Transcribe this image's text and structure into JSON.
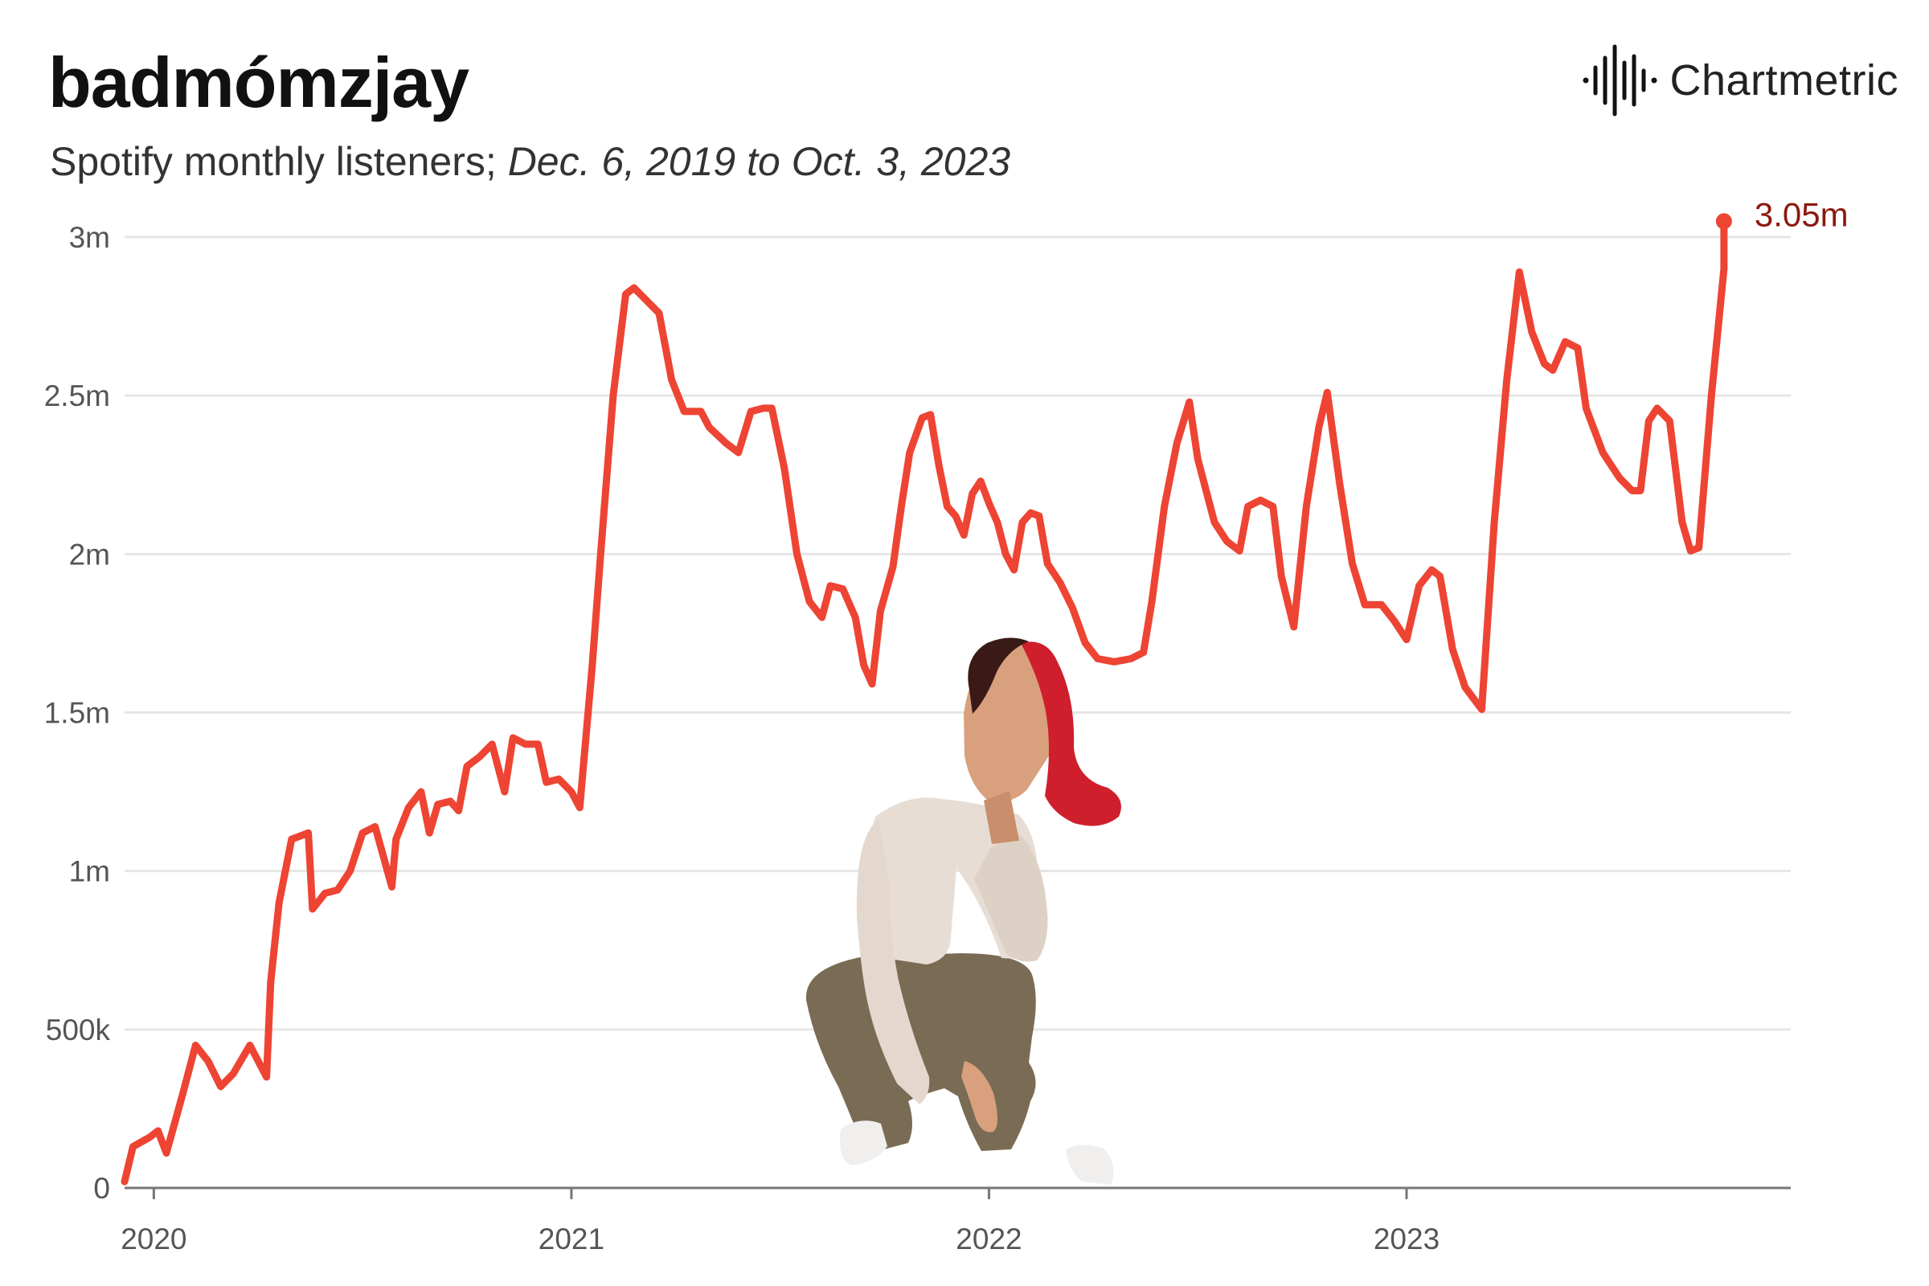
{
  "header": {
    "title": "badmómzjay",
    "subtitle_prefix": "Spotify monthly listeners; ",
    "subtitle_range": "Dec. 6, 2019 to Oct. 3, 2023"
  },
  "brand": {
    "name": "Chartmetric",
    "icon": "waveform-logo-icon"
  },
  "colors": {
    "line": "#ee4433",
    "end_label": "#8b1a10",
    "grid": "#e6e6e6",
    "axis": "#777777"
  },
  "illustration": {
    "subject": "artist-photo"
  },
  "chart_data": {
    "type": "line",
    "title": "badmómzjay",
    "subtitle": "Spotify monthly listeners; Dec. 6, 2019 to Oct. 3, 2023",
    "xlabel": "",
    "ylabel": "",
    "xlim": [
      2019.93,
      2023.92
    ],
    "ylim": [
      0,
      3000000
    ],
    "x_ticks": [
      2020,
      2021,
      2022,
      2023
    ],
    "x_tick_labels": [
      "2020",
      "2021",
      "2022",
      "2023"
    ],
    "y_ticks": [
      0,
      500000,
      1000000,
      1500000,
      2000000,
      2500000,
      3000000
    ],
    "y_tick_labels": [
      "0",
      "500k",
      "1m",
      "1.5m",
      "2m",
      "2.5m",
      "3m"
    ],
    "grid": "horizontal",
    "end_label": "3.05m",
    "series": [
      {
        "name": "Spotify monthly listeners",
        "points": [
          [
            2019.93,
            20000
          ],
          [
            2019.95,
            130000
          ],
          [
            2019.99,
            160000
          ],
          [
            2020.01,
            180000
          ],
          [
            2020.03,
            110000
          ],
          [
            2020.07,
            300000
          ],
          [
            2020.1,
            450000
          ],
          [
            2020.13,
            400000
          ],
          [
            2020.16,
            320000
          ],
          [
            2020.19,
            360000
          ],
          [
            2020.23,
            450000
          ],
          [
            2020.25,
            400000
          ],
          [
            2020.27,
            350000
          ],
          [
            2020.28,
            650000
          ],
          [
            2020.3,
            900000
          ],
          [
            2020.33,
            1100000
          ],
          [
            2020.37,
            1120000
          ],
          [
            2020.38,
            880000
          ],
          [
            2020.41,
            930000
          ],
          [
            2020.44,
            940000
          ],
          [
            2020.47,
            1000000
          ],
          [
            2020.5,
            1120000
          ],
          [
            2020.53,
            1140000
          ],
          [
            2020.57,
            950000
          ],
          [
            2020.58,
            1100000
          ],
          [
            2020.61,
            1200000
          ],
          [
            2020.64,
            1250000
          ],
          [
            2020.66,
            1120000
          ],
          [
            2020.68,
            1210000
          ],
          [
            2020.71,
            1220000
          ],
          [
            2020.73,
            1190000
          ],
          [
            2020.75,
            1330000
          ],
          [
            2020.78,
            1360000
          ],
          [
            2020.81,
            1400000
          ],
          [
            2020.84,
            1250000
          ],
          [
            2020.86,
            1420000
          ],
          [
            2020.89,
            1400000
          ],
          [
            2020.92,
            1400000
          ],
          [
            2020.94,
            1280000
          ],
          [
            2020.97,
            1290000
          ],
          [
            2021.0,
            1250000
          ],
          [
            2021.02,
            1200000
          ],
          [
            2021.05,
            1650000
          ],
          [
            2021.07,
            2000000
          ],
          [
            2021.1,
            2500000
          ],
          [
            2021.13,
            2820000
          ],
          [
            2021.15,
            2840000
          ],
          [
            2021.18,
            2800000
          ],
          [
            2021.21,
            2760000
          ],
          [
            2021.24,
            2550000
          ],
          [
            2021.27,
            2450000
          ],
          [
            2021.31,
            2450000
          ],
          [
            2021.33,
            2400000
          ],
          [
            2021.37,
            2350000
          ],
          [
            2021.4,
            2320000
          ],
          [
            2021.43,
            2450000
          ],
          [
            2021.46,
            2460000
          ],
          [
            2021.48,
            2460000
          ],
          [
            2021.51,
            2270000
          ],
          [
            2021.54,
            2000000
          ],
          [
            2021.57,
            1850000
          ],
          [
            2021.6,
            1800000
          ],
          [
            2021.62,
            1900000
          ],
          [
            2021.65,
            1890000
          ],
          [
            2021.68,
            1800000
          ],
          [
            2021.7,
            1650000
          ],
          [
            2021.72,
            1590000
          ],
          [
            2021.74,
            1820000
          ],
          [
            2021.77,
            1960000
          ],
          [
            2021.79,
            2150000
          ],
          [
            2021.81,
            2320000
          ],
          [
            2021.84,
            2430000
          ],
          [
            2021.86,
            2440000
          ],
          [
            2021.88,
            2280000
          ],
          [
            2021.9,
            2150000
          ],
          [
            2021.92,
            2120000
          ],
          [
            2021.94,
            2060000
          ],
          [
            2021.96,
            2190000
          ],
          [
            2021.98,
            2230000
          ],
          [
            2022.0,
            2160000
          ],
          [
            2022.02,
            2100000
          ],
          [
            2022.04,
            2000000
          ],
          [
            2022.06,
            1950000
          ],
          [
            2022.08,
            2100000
          ],
          [
            2022.1,
            2130000
          ],
          [
            2022.12,
            2120000
          ],
          [
            2022.14,
            1970000
          ],
          [
            2022.17,
            1910000
          ],
          [
            2022.2,
            1830000
          ],
          [
            2022.23,
            1720000
          ],
          [
            2022.26,
            1670000
          ],
          [
            2022.3,
            1660000
          ],
          [
            2022.34,
            1670000
          ],
          [
            2022.37,
            1690000
          ],
          [
            2022.39,
            1850000
          ],
          [
            2022.42,
            2150000
          ],
          [
            2022.45,
            2350000
          ],
          [
            2022.48,
            2480000
          ],
          [
            2022.5,
            2300000
          ],
          [
            2022.54,
            2100000
          ],
          [
            2022.57,
            2040000
          ],
          [
            2022.6,
            2010000
          ],
          [
            2022.62,
            2150000
          ],
          [
            2022.65,
            2170000
          ],
          [
            2022.68,
            2150000
          ],
          [
            2022.7,
            1930000
          ],
          [
            2022.73,
            1770000
          ],
          [
            2022.76,
            2150000
          ],
          [
            2022.79,
            2400000
          ],
          [
            2022.81,
            2510000
          ],
          [
            2022.84,
            2220000
          ],
          [
            2022.87,
            1970000
          ],
          [
            2022.9,
            1840000
          ],
          [
            2022.94,
            1840000
          ],
          [
            2022.97,
            1790000
          ],
          [
            2023.0,
            1730000
          ],
          [
            2023.03,
            1900000
          ],
          [
            2023.06,
            1950000
          ],
          [
            2023.08,
            1930000
          ],
          [
            2023.11,
            1700000
          ],
          [
            2023.14,
            1580000
          ],
          [
            2023.18,
            1510000
          ],
          [
            2023.21,
            2100000
          ],
          [
            2023.24,
            2550000
          ],
          [
            2023.27,
            2890000
          ],
          [
            2023.3,
            2700000
          ],
          [
            2023.33,
            2600000
          ],
          [
            2023.35,
            2580000
          ],
          [
            2023.38,
            2670000
          ],
          [
            2023.41,
            2650000
          ],
          [
            2023.43,
            2460000
          ],
          [
            2023.47,
            2320000
          ],
          [
            2023.51,
            2240000
          ],
          [
            2023.54,
            2200000
          ],
          [
            2023.56,
            2200000
          ],
          [
            2023.58,
            2420000
          ],
          [
            2023.6,
            2460000
          ],
          [
            2023.63,
            2420000
          ],
          [
            2023.66,
            2100000
          ],
          [
            2023.68,
            2010000
          ],
          [
            2023.7,
            2020000
          ],
          [
            2023.73,
            2500000
          ],
          [
            2023.76,
            2900000
          ],
          [
            2023.76,
            3050000
          ]
        ]
      }
    ]
  }
}
